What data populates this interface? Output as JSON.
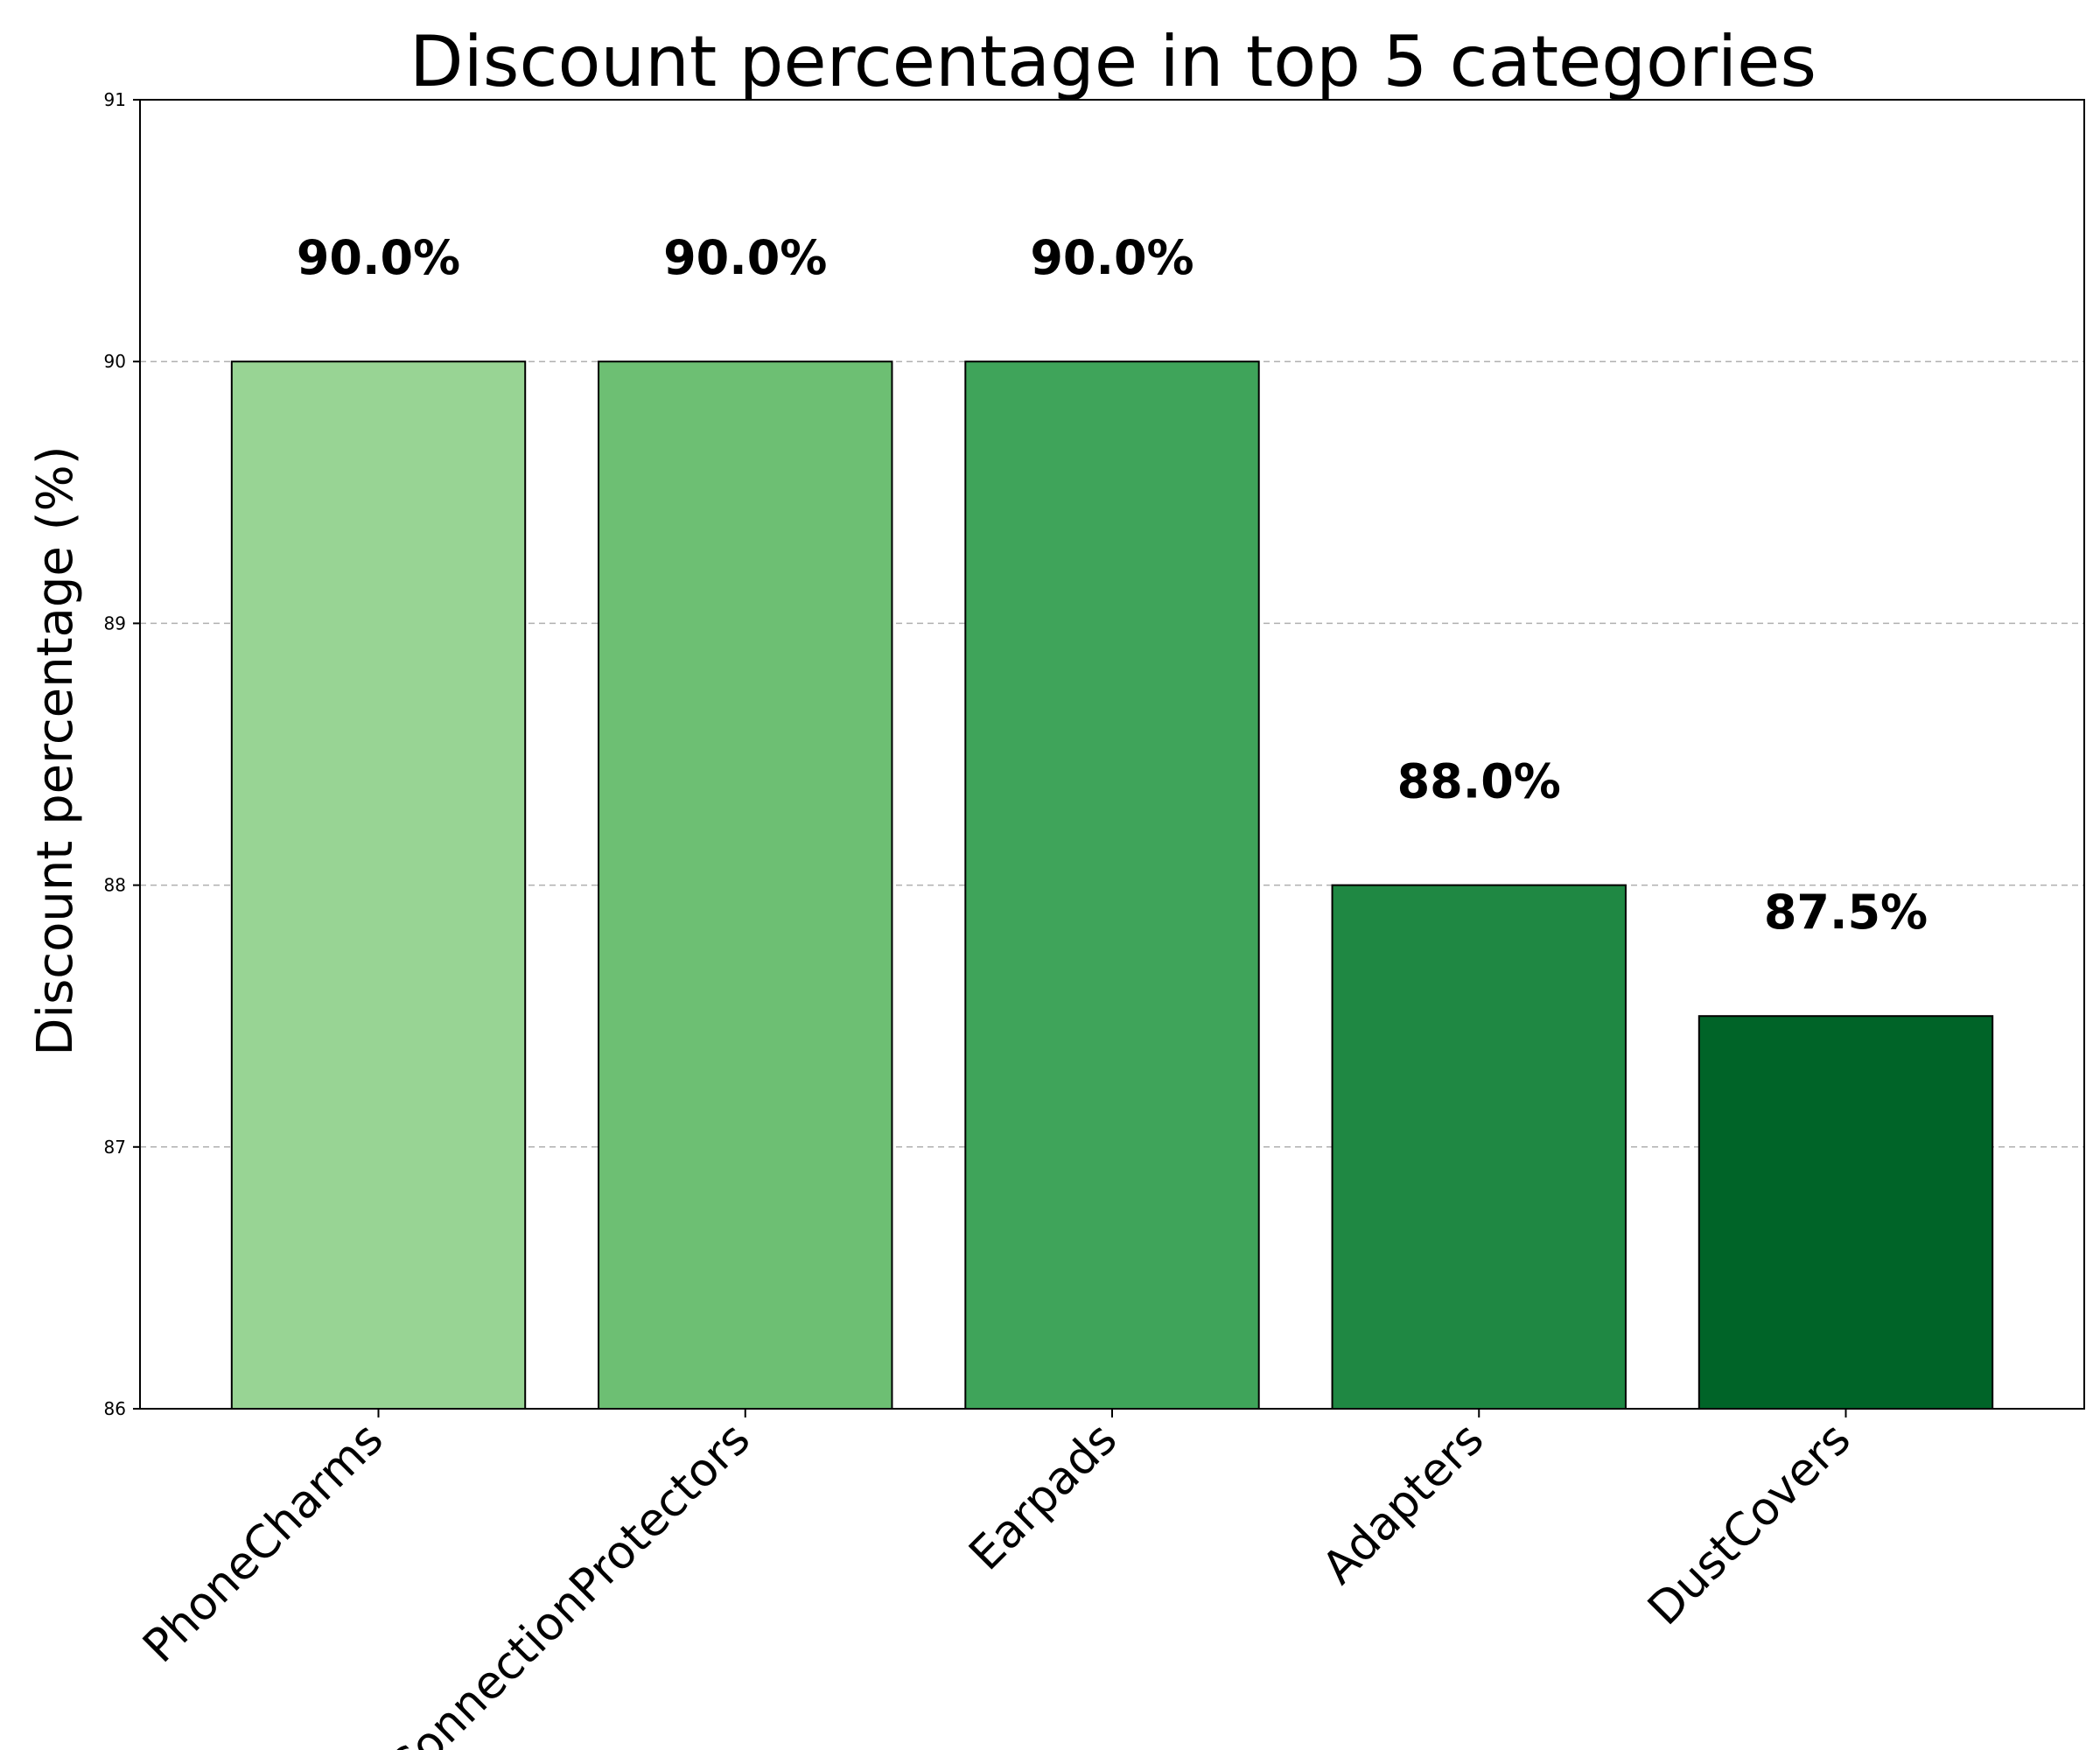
{
  "chart_data": {
    "type": "bar",
    "title": "Discount percentage in top 5 categories",
    "xlabel": "",
    "ylabel": "Discount percentage (%)",
    "categories": [
      "PhoneCharms",
      "ConnectionProtectors",
      "Earpads",
      "Adapters",
      "DustCovers"
    ],
    "values": [
      90.0,
      90.0,
      90.0,
      88.0,
      87.5
    ],
    "data_labels": [
      "90.0%",
      "90.0%",
      "90.0%",
      "88.0%",
      "87.5%"
    ],
    "colors": [
      "#98d494",
      "#6dbf73",
      "#3fa45a",
      "#1f8843",
      "#006428"
    ],
    "ylim": [
      86,
      91
    ],
    "yticks": [
      86,
      87,
      88,
      89,
      90,
      91
    ],
    "ytick_labels": [
      "86",
      "87",
      "88",
      "89",
      "90",
      "91"
    ],
    "grid": "y-dashed",
    "legend": "none",
    "xtick_rotation": "45 degrees"
  }
}
